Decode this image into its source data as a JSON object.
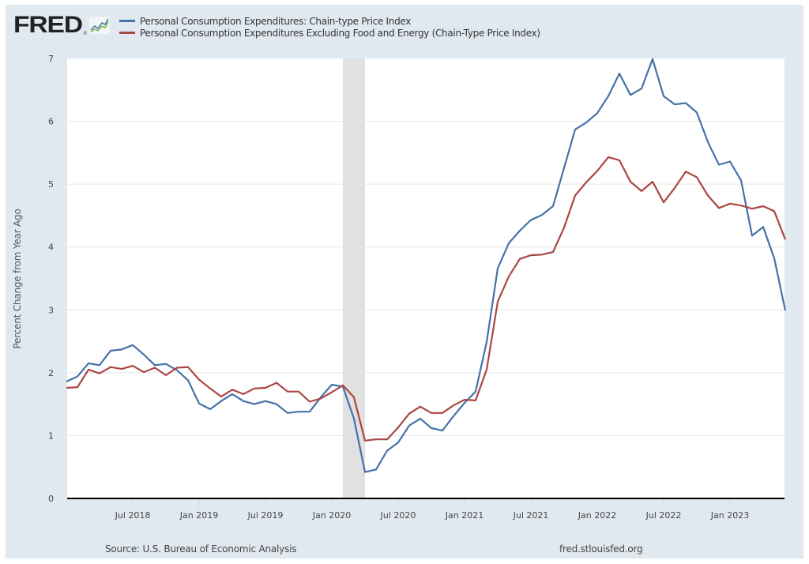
{
  "header": {
    "logo_text": "FRED",
    "logo_mark": "®",
    "logo_icon": "line-chart-icon"
  },
  "footer": {
    "source": "Source: U.S. Bureau of Economic Analysis",
    "url": "fred.stlouisfed.org"
  },
  "colors": {
    "panel_bg": "#e1e9f0",
    "series1": "#4572a7",
    "series2": "#aa4643",
    "recession": "#e1e1e1",
    "grid": "#e6e6e6",
    "axis": "#000000"
  },
  "chart_data": {
    "type": "line",
    "title": "",
    "xlabel": "",
    "ylabel": "Percent Change from Year Ago",
    "ylim": [
      0,
      7
    ],
    "yticks": [
      0,
      1,
      2,
      3,
      4,
      5,
      6,
      7
    ],
    "grid": true,
    "legend_position": "top",
    "x_start": "2018-01",
    "x_end": "2023-06",
    "xticks": [
      {
        "label": "Jul 2018",
        "month_index": 6
      },
      {
        "label": "Jan 2019",
        "month_index": 12
      },
      {
        "label": "Jul 2019",
        "month_index": 18
      },
      {
        "label": "Jan 2020",
        "month_index": 24
      },
      {
        "label": "Jul 2020",
        "month_index": 30
      },
      {
        "label": "Jan 2021",
        "month_index": 36
      },
      {
        "label": "Jul 2021",
        "month_index": 42
      },
      {
        "label": "Jan 2022",
        "month_index": 48
      },
      {
        "label": "Jul 2022",
        "month_index": 54
      },
      {
        "label": "Jan 2023",
        "month_index": 60
      }
    ],
    "recessions": [
      {
        "start": "2020-02",
        "end": "2020-04",
        "start_index": 25,
        "end_index": 27
      }
    ],
    "x": [
      "2018-01",
      "2018-02",
      "2018-03",
      "2018-04",
      "2018-05",
      "2018-06",
      "2018-07",
      "2018-08",
      "2018-09",
      "2018-10",
      "2018-11",
      "2018-12",
      "2019-01",
      "2019-02",
      "2019-03",
      "2019-04",
      "2019-05",
      "2019-06",
      "2019-07",
      "2019-08",
      "2019-09",
      "2019-10",
      "2019-11",
      "2019-12",
      "2020-01",
      "2020-02",
      "2020-03",
      "2020-04",
      "2020-05",
      "2020-06",
      "2020-07",
      "2020-08",
      "2020-09",
      "2020-10",
      "2020-11",
      "2020-12",
      "2021-01",
      "2021-02",
      "2021-03",
      "2021-04",
      "2021-05",
      "2021-06",
      "2021-07",
      "2021-08",
      "2021-09",
      "2021-10",
      "2021-11",
      "2021-12",
      "2022-01",
      "2022-02",
      "2022-03",
      "2022-04",
      "2022-05",
      "2022-06",
      "2022-07",
      "2022-08",
      "2022-09",
      "2022-10",
      "2022-11",
      "2022-12",
      "2023-01",
      "2023-02",
      "2023-03",
      "2023-04",
      "2023-05",
      "2023-06"
    ],
    "series": [
      {
        "name": "Personal Consumption Expenditures: Chain-type Price Index",
        "color": "#4572a7",
        "values": [
          1.86,
          1.94,
          2.15,
          2.12,
          2.35,
          2.37,
          2.44,
          2.29,
          2.12,
          2.14,
          2.04,
          1.88,
          1.51,
          1.42,
          1.55,
          1.66,
          1.55,
          1.5,
          1.55,
          1.5,
          1.36,
          1.38,
          1.38,
          1.61,
          1.81,
          1.78,
          1.27,
          0.42,
          0.46,
          0.76,
          0.89,
          1.16,
          1.27,
          1.12,
          1.08,
          1.31,
          1.52,
          1.7,
          2.49,
          3.66,
          4.06,
          4.26,
          4.43,
          4.51,
          4.65,
          5.26,
          5.87,
          5.98,
          6.13,
          6.4,
          6.76,
          6.42,
          6.52,
          6.99,
          6.4,
          6.27,
          6.29,
          6.14,
          5.67,
          5.31,
          5.36,
          5.06,
          4.18,
          4.32,
          3.82,
          2.99
        ]
      },
      {
        "name": "Personal Consumption Expenditures Excluding Food and Energy (Chain-Type Price Index)",
        "color": "#aa4643",
        "values": [
          1.76,
          1.77,
          2.05,
          1.99,
          2.09,
          2.06,
          2.11,
          2.01,
          2.08,
          1.96,
          2.08,
          2.09,
          1.89,
          1.75,
          1.62,
          1.73,
          1.66,
          1.75,
          1.76,
          1.84,
          1.7,
          1.7,
          1.54,
          1.59,
          1.69,
          1.8,
          1.61,
          0.92,
          0.94,
          0.94,
          1.13,
          1.35,
          1.46,
          1.36,
          1.36,
          1.48,
          1.57,
          1.56,
          2.05,
          3.13,
          3.53,
          3.81,
          3.87,
          3.88,
          3.92,
          4.31,
          4.82,
          5.03,
          5.21,
          5.43,
          5.38,
          5.04,
          4.89,
          5.04,
          4.71,
          4.94,
          5.2,
          5.11,
          4.82,
          4.62,
          4.69,
          4.66,
          4.61,
          4.65,
          4.57,
          4.12
        ]
      }
    ]
  }
}
